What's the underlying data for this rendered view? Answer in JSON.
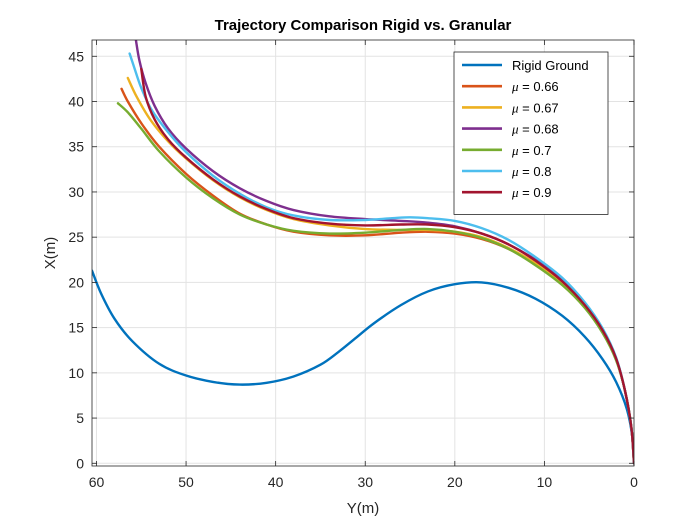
{
  "chart_data": {
    "type": "line",
    "title": "Trajectory Comparison Rigid vs. Granular",
    "xlabel": "Y(m)",
    "ylabel": "X(m)",
    "xlim": [
      60.5,
      0
    ],
    "ylim": [
      -0.3,
      46.8
    ],
    "x_reversed": true,
    "xticks": [
      60,
      50,
      40,
      30,
      20,
      10,
      0
    ],
    "yticks": [
      0,
      5,
      10,
      15,
      20,
      25,
      30,
      35,
      40,
      45
    ],
    "grid": true,
    "legend_placement": "top-right",
    "series": [
      {
        "name": "Rigid Ground",
        "legend_prefix": "",
        "legend_value": "Rigid Ground",
        "color": "#0072BD",
        "points": [
          [
            0,
            0
          ],
          [
            0.2,
            3
          ],
          [
            0.8,
            6
          ],
          [
            2,
            9
          ],
          [
            3.5,
            11.5
          ],
          [
            5.5,
            14
          ],
          [
            8,
            16.3
          ],
          [
            11,
            18.2
          ],
          [
            14,
            19.4
          ],
          [
            17,
            20
          ],
          [
            20,
            19.8
          ],
          [
            23,
            19
          ],
          [
            26,
            17.5
          ],
          [
            29,
            15.5
          ],
          [
            31,
            13.9
          ],
          [
            33,
            12.3
          ],
          [
            35,
            10.9
          ],
          [
            38,
            9.6
          ],
          [
            41,
            8.9
          ],
          [
            44,
            8.7
          ],
          [
            47,
            9
          ],
          [
            50,
            9.7
          ],
          [
            53,
            11
          ],
          [
            56,
            13.5
          ],
          [
            58,
            16
          ],
          [
            59.5,
            18.8
          ],
          [
            60.5,
            21.3
          ]
        ]
      },
      {
        "name": "mu = 0.66",
        "legend_prefix": "μ",
        "legend_value": " = 0.66",
        "color": "#D95319",
        "points": [
          [
            0,
            0
          ],
          [
            0.3,
            4
          ],
          [
            1,
            8
          ],
          [
            2,
            11.5
          ],
          [
            3.5,
            14.5
          ],
          [
            5.5,
            17.3
          ],
          [
            8,
            19.8
          ],
          [
            11,
            22
          ],
          [
            14,
            23.7
          ],
          [
            17,
            24.8
          ],
          [
            20,
            25.4
          ],
          [
            23,
            25.6
          ],
          [
            26,
            25.5
          ],
          [
            30,
            25.2
          ],
          [
            34,
            25.2
          ],
          [
            38,
            25.6
          ],
          [
            41,
            26.4
          ],
          [
            44,
            27.6
          ],
          [
            47,
            29.6
          ],
          [
            50,
            32
          ],
          [
            53,
            35
          ],
          [
            55,
            37.6
          ],
          [
            56.5,
            40
          ],
          [
            57.2,
            41.4
          ]
        ]
      },
      {
        "name": "mu = 0.67",
        "legend_prefix": "μ",
        "legend_value": " = 0.67",
        "color": "#EDB120",
        "points": [
          [
            0,
            0
          ],
          [
            0.3,
            4
          ],
          [
            1,
            8
          ],
          [
            2,
            11.5
          ],
          [
            3.5,
            14.5
          ],
          [
            5.5,
            17.3
          ],
          [
            8,
            19.8
          ],
          [
            11,
            22.1
          ],
          [
            14,
            23.8
          ],
          [
            17,
            25
          ],
          [
            20,
            25.6
          ],
          [
            23,
            25.8
          ],
          [
            26,
            25.8
          ],
          [
            30,
            25.9
          ],
          [
            34,
            26.3
          ],
          [
            38,
            27
          ],
          [
            41,
            28
          ],
          [
            44,
            29.4
          ],
          [
            47,
            31.3
          ],
          [
            50,
            33.7
          ],
          [
            52,
            35.6
          ],
          [
            54,
            38
          ],
          [
            55.5,
            40.5
          ],
          [
            56.5,
            42.6
          ]
        ]
      },
      {
        "name": "mu = 0.68",
        "legend_prefix": "μ",
        "legend_value": " = 0.68",
        "color": "#7E2F8E",
        "points": [
          [
            0,
            0
          ],
          [
            0.3,
            4
          ],
          [
            1,
            8
          ],
          [
            2,
            11.6
          ],
          [
            3.5,
            14.7
          ],
          [
            5.5,
            17.6
          ],
          [
            8,
            20.2
          ],
          [
            11,
            22.5
          ],
          [
            14,
            24.2
          ],
          [
            17,
            25.4
          ],
          [
            20,
            26.2
          ],
          [
            23,
            26.6
          ],
          [
            26,
            26.8
          ],
          [
            30,
            27
          ],
          [
            34,
            27.3
          ],
          [
            38,
            28
          ],
          [
            41,
            29
          ],
          [
            44,
            30.4
          ],
          [
            47,
            32.3
          ],
          [
            50,
            34.8
          ],
          [
            52,
            37
          ],
          [
            53.5,
            39.5
          ],
          [
            54.5,
            42
          ],
          [
            55.2,
            44.5
          ],
          [
            55.6,
            46.8
          ]
        ]
      },
      {
        "name": "mu = 0.7",
        "legend_prefix": "μ",
        "legend_value": " = 0.7",
        "color": "#77AC30",
        "points": [
          [
            0,
            0
          ],
          [
            0.3,
            4
          ],
          [
            1,
            8
          ],
          [
            2,
            11.4
          ],
          [
            3.5,
            14.4
          ],
          [
            5.5,
            17.2
          ],
          [
            8,
            19.7
          ],
          [
            11,
            21.9
          ],
          [
            14,
            23.7
          ],
          [
            17,
            24.9
          ],
          [
            20,
            25.6
          ],
          [
            23,
            25.9
          ],
          [
            26,
            25.8
          ],
          [
            30,
            25.5
          ],
          [
            34,
            25.4
          ],
          [
            38,
            25.7
          ],
          [
            41,
            26.4
          ],
          [
            44,
            27.5
          ],
          [
            47,
            29.3
          ],
          [
            50,
            31.6
          ],
          [
            53,
            34.5
          ],
          [
            55,
            37
          ],
          [
            56.5,
            38.8
          ],
          [
            57.6,
            39.8
          ]
        ]
      },
      {
        "name": "mu = 0.8",
        "legend_prefix": "μ",
        "legend_value": " = 0.8",
        "color": "#4DBEEE",
        "points": [
          [
            0,
            0
          ],
          [
            0.3,
            4
          ],
          [
            1,
            8
          ],
          [
            2,
            11.7
          ],
          [
            3.5,
            14.9
          ],
          [
            5.5,
            17.8
          ],
          [
            8,
            20.5
          ],
          [
            11,
            22.8
          ],
          [
            14,
            24.7
          ],
          [
            17,
            26
          ],
          [
            20,
            26.8
          ],
          [
            23,
            27.1
          ],
          [
            25,
            27.2
          ],
          [
            27,
            27.1
          ],
          [
            30,
            26.9
          ],
          [
            34,
            26.9
          ],
          [
            38,
            27.4
          ],
          [
            41,
            28.3
          ],
          [
            44,
            29.8
          ],
          [
            47,
            31.8
          ],
          [
            50,
            34.4
          ],
          [
            52,
            36.6
          ],
          [
            53.8,
            39
          ],
          [
            55,
            41.5
          ],
          [
            55.8,
            43.8
          ],
          [
            56.3,
            45.3
          ]
        ]
      },
      {
        "name": "mu = 0.9",
        "legend_prefix": "μ",
        "legend_value": " = 0.9",
        "color": "#A2142F",
        "points": [
          [
            0,
            0
          ],
          [
            0.3,
            4
          ],
          [
            1,
            8
          ],
          [
            2,
            11.6
          ],
          [
            3.5,
            14.7
          ],
          [
            5.5,
            17.5
          ],
          [
            8,
            20.1
          ],
          [
            11,
            22.4
          ],
          [
            14,
            24.2
          ],
          [
            17,
            25.4
          ],
          [
            20,
            26.1
          ],
          [
            23,
            26.4
          ],
          [
            26,
            26.4
          ],
          [
            30,
            26.3
          ],
          [
            34,
            26.5
          ],
          [
            38,
            27.1
          ],
          [
            41,
            28.1
          ],
          [
            44,
            29.5
          ],
          [
            47,
            31.4
          ],
          [
            50,
            33.8
          ],
          [
            52,
            35.8
          ],
          [
            53.5,
            38
          ],
          [
            54.5,
            40.5
          ],
          [
            55,
            43.6
          ]
        ]
      }
    ]
  }
}
